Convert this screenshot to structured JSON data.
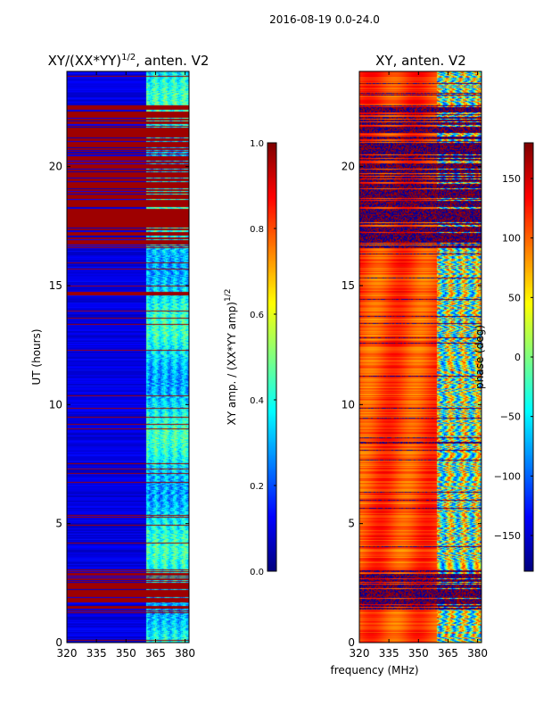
{
  "suptitle": "2016-08-19 0.0-24.0",
  "colormap": "jet",
  "chart_data": [
    {
      "type": "heatmap",
      "title_prefix": "XY/(XX*YY)",
      "title_exp": "1/2",
      "title_suffix": ", anten. V2",
      "xlabel": "",
      "ylabel": "UT (hours)",
      "xlim": [
        320,
        382
      ],
      "ylim": [
        0,
        24
      ],
      "xticks": [
        320,
        335,
        350,
        365,
        380
      ],
      "yticks": [
        0,
        5,
        10,
        15,
        20
      ],
      "colorbar": {
        "label_base": "XY amp. / (XX*YY amp)",
        "label_exp": "1/2",
        "range": [
          0.0,
          1.0
        ],
        "ticks": [
          "0.0",
          "0.2",
          "0.4",
          "0.6",
          "0.8",
          "1.0"
        ],
        "tick_values": [
          0.0,
          0.2,
          0.4,
          0.6,
          0.8,
          1.0
        ]
      },
      "background_value": 0.1,
      "variable_band_mhz": [
        360,
        382
      ],
      "red_flag_bands_hours": [
        [
          1.4,
          3.1
        ],
        [
          14.6,
          14.8
        ],
        [
          16.6,
          22.6
        ]
      ]
    },
    {
      "type": "heatmap",
      "title": "XY, anten. V2",
      "xlabel": "frequency (MHz)",
      "ylabel": "",
      "xlim": [
        320,
        382
      ],
      "ylim": [
        0,
        24
      ],
      "xticks": [
        320,
        335,
        350,
        365,
        380
      ],
      "yticks": [
        0,
        5,
        10,
        15,
        20
      ],
      "colorbar": {
        "label": "phase (deg)",
        "range": [
          -180,
          180
        ],
        "ticks": [
          "−150",
          "−100",
          "−50",
          "0",
          "50",
          "100",
          "150"
        ],
        "tick_values": [
          -150,
          -100,
          -50,
          0,
          50,
          100,
          150
        ]
      },
      "background_value": 110,
      "variable_band_mhz": [
        359,
        382
      ],
      "dark_flag_bands_hours": [
        [
          1.4,
          3.1
        ],
        [
          16.6,
          22.6
        ]
      ]
    }
  ]
}
